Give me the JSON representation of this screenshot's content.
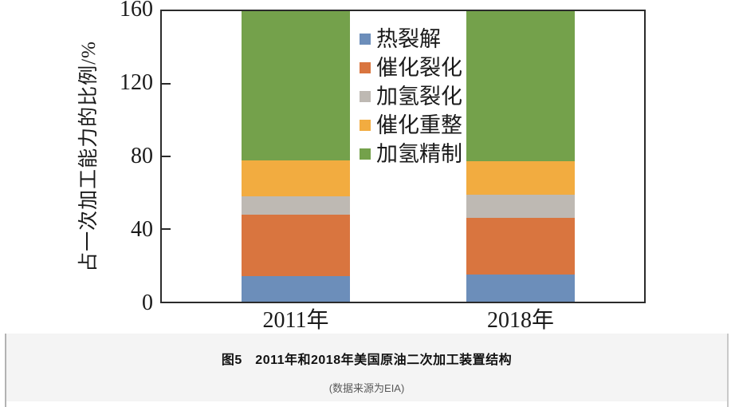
{
  "page": {
    "background": "#ffffff",
    "band_background": "#f4f4f4"
  },
  "figure": {
    "caption": "图5　2011年和2018年美国原油二次加工装置结构",
    "source": "(数据来源为EIA)"
  },
  "chart_data": {
    "type": "bar",
    "stacked": true,
    "title": "",
    "categories": [
      "2011年",
      "2018年"
    ],
    "series": [
      {
        "name": "热裂解",
        "color": "#6C8EBA",
        "values": [
          14,
          15
        ]
      },
      {
        "name": "催化裂化",
        "color": "#D9753F",
        "values": [
          34,
          31
        ]
      },
      {
        "name": "加氢裂化",
        "color": "#BEB9B3",
        "values": [
          10,
          13
        ]
      },
      {
        "name": "催化重整",
        "color": "#F2AC40",
        "values": [
          20,
          18.5
        ]
      },
      {
        "name": "加氢精制",
        "color": "#74A14B",
        "values": [
          82,
          82.5
        ]
      }
    ],
    "xlabel": "",
    "ylabel": "占一次加工能力的比例/%",
    "ylim": [
      0,
      160
    ],
    "yticks": [
      0,
      40,
      80,
      120,
      160
    ],
    "grid": false,
    "legend_position": "inside-upper-center",
    "axis_color": "#2b2b2b"
  }
}
